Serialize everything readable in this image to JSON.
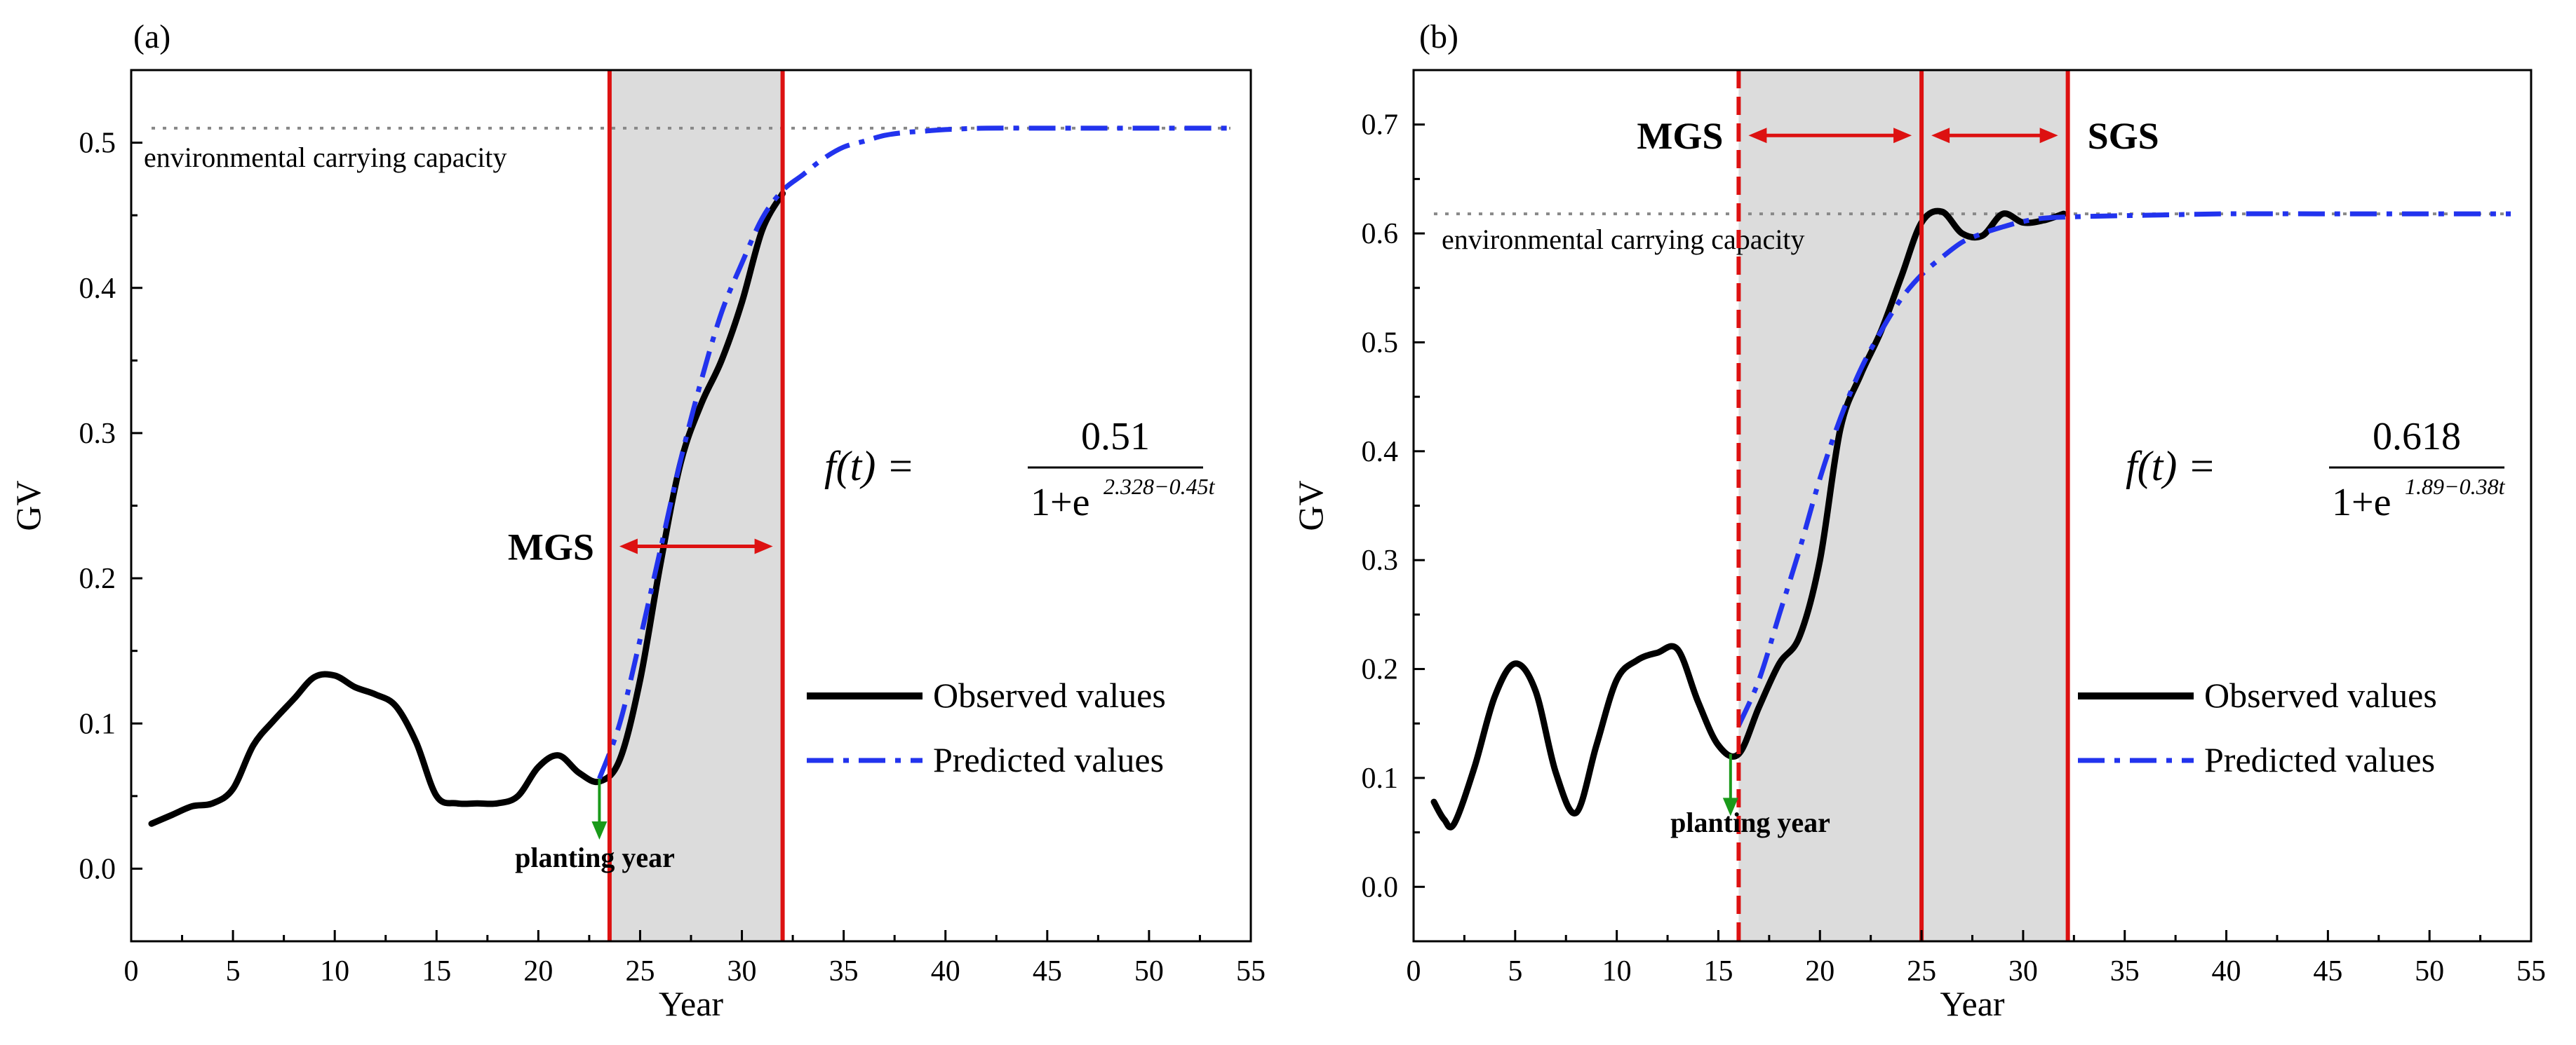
{
  "colors": {
    "observed": "#000000",
    "predicted": "#2233ee",
    "stage_line": "#dd1111",
    "stage_fill": "#dcdcdc",
    "arrow": "#dd1111",
    "planting_arrow": "#1a9a1a",
    "capacity_line": "#888888"
  },
  "chart_data": [
    {
      "type": "line",
      "panel_label": "(a)",
      "xlabel": "Year",
      "ylabel": "GV",
      "xlim": [
        0,
        55
      ],
      "ylim": [
        -0.05,
        0.55
      ],
      "xticks": [
        0,
        5,
        10,
        15,
        20,
        25,
        30,
        35,
        40,
        45,
        50,
        55
      ],
      "yticks": [
        0.0,
        0.1,
        0.2,
        0.3,
        0.4,
        0.5
      ],
      "ytick_labels": [
        "0.0",
        "0.1",
        "0.2",
        "0.3",
        "0.4",
        "0.5"
      ],
      "series": [
        {
          "name": "Observed values",
          "style": "solid",
          "x": [
            1,
            2,
            3,
            4,
            5,
            6,
            7,
            8,
            9,
            10,
            11,
            12,
            13,
            14,
            15,
            16,
            17,
            18,
            19,
            20,
            21,
            22,
            23,
            24,
            25,
            26,
            27,
            28,
            29,
            30,
            31,
            32
          ],
          "y": [
            0.031,
            0.037,
            0.043,
            0.045,
            0.055,
            0.085,
            0.102,
            0.117,
            0.132,
            0.133,
            0.125,
            0.12,
            0.112,
            0.087,
            0.05,
            0.045,
            0.045,
            0.045,
            0.05,
            0.07,
            0.078,
            0.066,
            0.06,
            0.075,
            0.13,
            0.21,
            0.28,
            0.32,
            0.35,
            0.39,
            0.44,
            0.465
          ]
        },
        {
          "name": "Predicted values",
          "style": "dashdot",
          "x": [
            23,
            24,
            25,
            26,
            27,
            28,
            29,
            30,
            31,
            32,
            33,
            34,
            35,
            36,
            37,
            38,
            39,
            40,
            42,
            45,
            48,
            51,
            54
          ],
          "y": [
            0.062,
            0.1,
            0.158,
            0.22,
            0.282,
            0.336,
            0.383,
            0.417,
            0.448,
            0.467,
            0.478,
            0.489,
            0.497,
            0.501,
            0.505,
            0.507,
            0.508,
            0.509,
            0.51,
            0.51,
            0.51,
            0.51,
            0.51
          ]
        }
      ],
      "capacity": {
        "value": 0.51,
        "x_from": 1,
        "x_to": 54,
        "label": "environmental carrying capacity"
      },
      "stage_lines": [
        {
          "x": 23.5,
          "style": "solid"
        },
        {
          "x": 32,
          "style": "solid"
        }
      ],
      "shaded_region": [
        23.5,
        32
      ],
      "stages": [
        {
          "label": "MGS",
          "from": 23.5,
          "to": 32,
          "y": 0.222
        }
      ],
      "planting": {
        "x": 23,
        "y_from": 0.062,
        "y_to": 0.02,
        "label": "planting year"
      },
      "formula": {
        "lhs": "f(t) =",
        "numerator": "0.51",
        "denominator_base": "1+e",
        "exponent": "2.328−0.45t"
      },
      "legend": {
        "position": "right",
        "observed_label": "Observed values",
        "predicted_label": "Predicted values"
      }
    },
    {
      "type": "line",
      "panel_label": "(b)",
      "xlabel": "Year",
      "ylabel": "GV",
      "xlim": [
        0,
        55
      ],
      "ylim": [
        -0.05,
        0.75
      ],
      "xticks": [
        0,
        5,
        10,
        15,
        20,
        25,
        30,
        35,
        40,
        45,
        50,
        55
      ],
      "yticks": [
        0.0,
        0.1,
        0.2,
        0.3,
        0.4,
        0.5,
        0.6,
        0.7
      ],
      "ytick_labels": [
        "0.0",
        "0.1",
        "0.2",
        "0.3",
        "0.4",
        "0.5",
        "0.6",
        "0.7"
      ],
      "series": [
        {
          "name": "Observed values",
          "style": "solid",
          "x": [
            1,
            1.5,
            2,
            3,
            4,
            5,
            6,
            7,
            8,
            9,
            10,
            11,
            12,
            13,
            14,
            15,
            16,
            17,
            18,
            19,
            20,
            21,
            22,
            23,
            24,
            25,
            26,
            27,
            28,
            29,
            30,
            31,
            32
          ],
          "y": [
            0.078,
            0.062,
            0.058,
            0.11,
            0.175,
            0.205,
            0.18,
            0.105,
            0.068,
            0.13,
            0.19,
            0.208,
            0.215,
            0.218,
            0.17,
            0.13,
            0.122,
            0.165,
            0.205,
            0.23,
            0.3,
            0.42,
            0.47,
            0.51,
            0.56,
            0.61,
            0.62,
            0.6,
            0.598,
            0.618,
            0.61,
            0.612,
            0.618
          ]
        },
        {
          "name": "Predicted values",
          "style": "dashdot",
          "x": [
            16,
            17,
            18,
            19,
            20,
            21,
            22,
            23,
            24,
            25,
            26,
            27,
            28,
            29,
            30,
            31,
            32,
            34,
            37,
            40,
            45,
            50,
            54
          ],
          "y": [
            0.148,
            0.19,
            0.25,
            0.31,
            0.375,
            0.43,
            0.475,
            0.51,
            0.54,
            0.562,
            0.578,
            0.592,
            0.6,
            0.606,
            0.611,
            0.614,
            0.615,
            0.616,
            0.617,
            0.618,
            0.618,
            0.618,
            0.618
          ]
        }
      ],
      "capacity": {
        "value": 0.618,
        "x_from": 1,
        "x_to": 54,
        "label": "environmental carrying capacity"
      },
      "stage_lines": [
        {
          "x": 16,
          "style": "dashed"
        },
        {
          "x": 25,
          "style": "solid"
        },
        {
          "x": 32.2,
          "style": "solid"
        }
      ],
      "shaded_region": [
        16,
        32.2
      ],
      "stages": [
        {
          "label": "MGS",
          "from": 16,
          "to": 25,
          "y": 0.69,
          "label_side": "left"
        },
        {
          "label": "SGS",
          "from": 25,
          "to": 32.2,
          "y": 0.69,
          "label_side": "right"
        }
      ],
      "planting": {
        "x": 15.6,
        "y_from": 0.122,
        "y_to": 0.065,
        "label": "planting year"
      },
      "formula": {
        "lhs": "f(t) =",
        "numerator": "0.618",
        "denominator_base": "1+e",
        "exponent": "1.89−0.38t"
      },
      "legend": {
        "position": "right",
        "observed_label": "Observed values",
        "predicted_label": "Predicted values"
      }
    }
  ]
}
